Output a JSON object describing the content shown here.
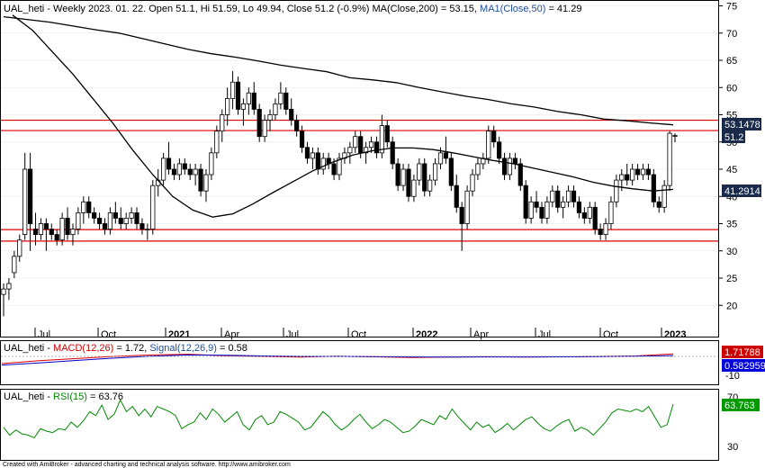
{
  "price_panel": {
    "prefix": "UAL_heti - Weekly 2023. 01. 22. Open 51.1, Hi 51.59, Lo 49.94, Close 51.2 (-0.9%) MA(Close,200) = 53.15, ",
    "ma50_label": "MA1(Close,50)",
    "ma50_value_text": " = 41.29",
    "tag_ma200": "53.1478",
    "tag_close": "51.2",
    "tag_ma50": "41.2914"
  },
  "macd_panel": {
    "prefix": "UAL_heti - ",
    "macd_label": "MACD(12,26)",
    "macd_value_text": " = 1.72, ",
    "signal_label": "Signal(12,26,9)",
    "signal_value_text": " = 0.58",
    "tag_macd": "1.71788",
    "tag_signal": "0.582959",
    "axis_label": "-10"
  },
  "rsi_panel": {
    "prefix": "UAL_heti - ",
    "rsi_label": "RSI(15)",
    "rsi_value_text": " = 63.76",
    "tag_rsi": "63.763",
    "axis_labels": [
      "70",
      "30"
    ]
  },
  "credit": "Created with AmiBroker - advanced charting and technical analysis software. http://www.amibroker.com",
  "colors": {
    "up_candle": "#ffffff",
    "down_candle": "#000000",
    "ma200": "#000000",
    "ma50": "#000000",
    "hline": "#e00000",
    "macd": "#e00000",
    "signal": "#0000cc",
    "rsi": "#008800",
    "tag_ma": "#1a2a4a",
    "tag_macd": "#cc0000",
    "tag_signal": "#0000dd",
    "tag_rsi": "#009900"
  },
  "chart_data": {
    "type": "candlestick",
    "y_ticks": [
      75,
      70,
      65,
      60,
      55,
      50,
      45,
      40,
      35,
      30,
      25,
      20
    ],
    "ylim": [
      16.5,
      76.5
    ],
    "x_labels": [
      "Jul",
      "Oct",
      "2021",
      "Apr",
      "Jul",
      "Oct",
      "2022",
      "Apr",
      "Jul",
      "Oct",
      "2023"
    ],
    "horizontal_lines": [
      54.0,
      52.1,
      33.9,
      31.8
    ],
    "candles": [
      {
        "o": 22,
        "h": 24,
        "l": 18,
        "c": 23
      },
      {
        "o": 23,
        "h": 25,
        "l": 21,
        "c": 24
      },
      {
        "o": 26,
        "h": 30,
        "l": 25,
        "c": 29
      },
      {
        "o": 29,
        "h": 33,
        "l": 28,
        "c": 32
      },
      {
        "o": 33,
        "h": 48,
        "l": 32,
        "c": 45
      },
      {
        "o": 45,
        "h": 48,
        "l": 30,
        "c": 35
      },
      {
        "o": 34,
        "h": 37,
        "l": 31,
        "c": 33
      },
      {
        "o": 33,
        "h": 36,
        "l": 32,
        "c": 35
      },
      {
        "o": 35,
        "h": 36,
        "l": 30,
        "c": 34
      },
      {
        "o": 34,
        "h": 35,
        "l": 32,
        "c": 33
      },
      {
        "o": 33,
        "h": 34,
        "l": 31,
        "c": 32
      },
      {
        "o": 32,
        "h": 37,
        "l": 31,
        "c": 36
      },
      {
        "o": 36,
        "h": 38,
        "l": 32,
        "c": 33
      },
      {
        "o": 33,
        "h": 35,
        "l": 31,
        "c": 34
      },
      {
        "o": 34,
        "h": 38,
        "l": 33,
        "c": 37
      },
      {
        "o": 37,
        "h": 40,
        "l": 35,
        "c": 39
      },
      {
        "o": 39,
        "h": 40,
        "l": 36,
        "c": 37
      },
      {
        "o": 37,
        "h": 38,
        "l": 35,
        "c": 36
      },
      {
        "o": 36,
        "h": 37,
        "l": 34,
        "c": 35
      },
      {
        "o": 35,
        "h": 36,
        "l": 33,
        "c": 34
      },
      {
        "o": 34,
        "h": 38,
        "l": 33,
        "c": 37
      },
      {
        "o": 37,
        "h": 39,
        "l": 35,
        "c": 36
      },
      {
        "o": 36,
        "h": 38,
        "l": 34,
        "c": 35
      },
      {
        "o": 35,
        "h": 37,
        "l": 34,
        "c": 36
      },
      {
        "o": 36,
        "h": 38,
        "l": 35,
        "c": 37
      },
      {
        "o": 37,
        "h": 38,
        "l": 34,
        "c": 35
      },
      {
        "o": 35,
        "h": 36,
        "l": 33,
        "c": 34
      },
      {
        "o": 34,
        "h": 35,
        "l": 32,
        "c": 34
      },
      {
        "o": 34,
        "h": 43,
        "l": 33,
        "c": 42
      },
      {
        "o": 42,
        "h": 45,
        "l": 40,
        "c": 43
      },
      {
        "o": 43,
        "h": 48,
        "l": 42,
        "c": 47
      },
      {
        "o": 47,
        "h": 50,
        "l": 44,
        "c": 45
      },
      {
        "o": 45,
        "h": 46,
        "l": 43,
        "c": 44
      },
      {
        "o": 44,
        "h": 47,
        "l": 43,
        "c": 46
      },
      {
        "o": 46,
        "h": 47,
        "l": 44,
        "c": 45
      },
      {
        "o": 45,
        "h": 46,
        "l": 43,
        "c": 44
      },
      {
        "o": 44,
        "h": 46,
        "l": 42,
        "c": 45
      },
      {
        "o": 45,
        "h": 46,
        "l": 40,
        "c": 41
      },
      {
        "o": 41,
        "h": 45,
        "l": 39,
        "c": 44
      },
      {
        "o": 44,
        "h": 49,
        "l": 43,
        "c": 48
      },
      {
        "o": 48,
        "h": 53,
        "l": 47,
        "c": 52
      },
      {
        "o": 52,
        "h": 56,
        "l": 50,
        "c": 55
      },
      {
        "o": 55,
        "h": 60,
        "l": 53,
        "c": 58
      },
      {
        "o": 58,
        "h": 63,
        "l": 56,
        "c": 61
      },
      {
        "o": 61,
        "h": 62,
        "l": 55,
        "c": 56
      },
      {
        "o": 56,
        "h": 58,
        "l": 53,
        "c": 57
      },
      {
        "o": 57,
        "h": 60,
        "l": 55,
        "c": 59
      },
      {
        "o": 59,
        "h": 61,
        "l": 55,
        "c": 56
      },
      {
        "o": 56,
        "h": 57,
        "l": 50,
        "c": 51
      },
      {
        "o": 51,
        "h": 55,
        "l": 50,
        "c": 54
      },
      {
        "o": 54,
        "h": 56,
        "l": 52,
        "c": 55
      },
      {
        "o": 55,
        "h": 58,
        "l": 54,
        "c": 57
      },
      {
        "o": 57,
        "h": 61,
        "l": 56,
        "c": 59
      },
      {
        "o": 59,
        "h": 60,
        "l": 55,
        "c": 56
      },
      {
        "o": 56,
        "h": 58,
        "l": 53,
        "c": 54
      },
      {
        "o": 54,
        "h": 55,
        "l": 51,
        "c": 52
      },
      {
        "o": 52,
        "h": 53,
        "l": 48,
        "c": 49
      },
      {
        "o": 49,
        "h": 50,
        "l": 46,
        "c": 47
      },
      {
        "o": 47,
        "h": 49,
        "l": 45,
        "c": 48
      },
      {
        "o": 48,
        "h": 49,
        "l": 44,
        "c": 45
      },
      {
        "o": 45,
        "h": 48,
        "l": 44,
        "c": 47
      },
      {
        "o": 47,
        "h": 48,
        "l": 45,
        "c": 46
      },
      {
        "o": 46,
        "h": 47,
        "l": 43,
        "c": 44
      },
      {
        "o": 44,
        "h": 48,
        "l": 43,
        "c": 47
      },
      {
        "o": 47,
        "h": 49,
        "l": 46,
        "c": 48
      },
      {
        "o": 48,
        "h": 50,
        "l": 46,
        "c": 49
      },
      {
        "o": 49,
        "h": 52,
        "l": 48,
        "c": 51
      },
      {
        "o": 51,
        "h": 52,
        "l": 47,
        "c": 48
      },
      {
        "o": 48,
        "h": 50,
        "l": 46,
        "c": 49
      },
      {
        "o": 49,
        "h": 51,
        "l": 48,
        "c": 50
      },
      {
        "o": 50,
        "h": 51,
        "l": 47,
        "c": 48
      },
      {
        "o": 48,
        "h": 55,
        "l": 47,
        "c": 53
      },
      {
        "o": 53,
        "h": 54,
        "l": 49,
        "c": 50
      },
      {
        "o": 50,
        "h": 51,
        "l": 45,
        "c": 46
      },
      {
        "o": 46,
        "h": 47,
        "l": 41,
        "c": 42
      },
      {
        "o": 42,
        "h": 46,
        "l": 41,
        "c": 45
      },
      {
        "o": 45,
        "h": 46,
        "l": 39,
        "c": 40
      },
      {
        "o": 40,
        "h": 44,
        "l": 39,
        "c": 43
      },
      {
        "o": 43,
        "h": 47,
        "l": 42,
        "c": 46
      },
      {
        "o": 46,
        "h": 47,
        "l": 40,
        "c": 41
      },
      {
        "o": 41,
        "h": 44,
        "l": 40,
        "c": 43
      },
      {
        "o": 43,
        "h": 47,
        "l": 42,
        "c": 46
      },
      {
        "o": 46,
        "h": 49,
        "l": 45,
        "c": 48
      },
      {
        "o": 48,
        "h": 51,
        "l": 46,
        "c": 47
      },
      {
        "o": 47,
        "h": 48,
        "l": 41,
        "c": 42
      },
      {
        "o": 42,
        "h": 44,
        "l": 37,
        "c": 38
      },
      {
        "o": 38,
        "h": 39,
        "l": 30,
        "c": 35
      },
      {
        "o": 35,
        "h": 42,
        "l": 34,
        "c": 41
      },
      {
        "o": 41,
        "h": 45,
        "l": 40,
        "c": 44
      },
      {
        "o": 44,
        "h": 47,
        "l": 43,
        "c": 46
      },
      {
        "o": 46,
        "h": 48,
        "l": 45,
        "c": 47
      },
      {
        "o": 47,
        "h": 53,
        "l": 46,
        "c": 52
      },
      {
        "o": 52,
        "h": 53,
        "l": 49,
        "c": 50
      },
      {
        "o": 50,
        "h": 51,
        "l": 46,
        "c": 47
      },
      {
        "o": 47,
        "h": 48,
        "l": 43,
        "c": 44
      },
      {
        "o": 44,
        "h": 48,
        "l": 43,
        "c": 47
      },
      {
        "o": 47,
        "h": 48,
        "l": 45,
        "c": 46
      },
      {
        "o": 46,
        "h": 47,
        "l": 41,
        "c": 42
      },
      {
        "o": 42,
        "h": 43,
        "l": 35,
        "c": 36
      },
      {
        "o": 36,
        "h": 40,
        "l": 35,
        "c": 39
      },
      {
        "o": 39,
        "h": 41,
        "l": 37,
        "c": 38
      },
      {
        "o": 38,
        "h": 39,
        "l": 35,
        "c": 36
      },
      {
        "o": 36,
        "h": 40,
        "l": 35,
        "c": 39
      },
      {
        "o": 39,
        "h": 42,
        "l": 38,
        "c": 41
      },
      {
        "o": 41,
        "h": 42,
        "l": 37,
        "c": 38
      },
      {
        "o": 38,
        "h": 40,
        "l": 36,
        "c": 39
      },
      {
        "o": 39,
        "h": 42,
        "l": 38,
        "c": 41
      },
      {
        "o": 41,
        "h": 42,
        "l": 38,
        "c": 39
      },
      {
        "o": 39,
        "h": 40,
        "l": 36,
        "c": 37
      },
      {
        "o": 37,
        "h": 38,
        "l": 35,
        "c": 36
      },
      {
        "o": 36,
        "h": 39,
        "l": 35,
        "c": 38
      },
      {
        "o": 38,
        "h": 39,
        "l": 33,
        "c": 34
      },
      {
        "o": 34,
        "h": 35,
        "l": 32,
        "c": 33
      },
      {
        "o": 33,
        "h": 36,
        "l": 32,
        "c": 35
      },
      {
        "o": 35,
        "h": 40,
        "l": 34,
        "c": 39
      },
      {
        "o": 39,
        "h": 44,
        "l": 38,
        "c": 43
      },
      {
        "o": 43,
        "h": 45,
        "l": 41,
        "c": 44
      },
      {
        "o": 44,
        "h": 46,
        "l": 42,
        "c": 43
      },
      {
        "o": 43,
        "h": 46,
        "l": 42,
        "c": 45
      },
      {
        "o": 45,
        "h": 46,
        "l": 43,
        "c": 44
      },
      {
        "o": 44,
        "h": 46,
        "l": 43,
        "c": 45
      },
      {
        "o": 45,
        "h": 46,
        "l": 43,
        "c": 44
      },
      {
        "o": 44,
        "h": 45,
        "l": 38,
        "c": 39
      },
      {
        "o": 39,
        "h": 40,
        "l": 37,
        "c": 38
      },
      {
        "o": 38,
        "h": 43,
        "l": 37,
        "c": 42
      },
      {
        "o": 42,
        "h": 52,
        "l": 41,
        "c": 51.6
      },
      {
        "o": 51.1,
        "h": 51.59,
        "l": 49.94,
        "c": 51.2
      }
    ],
    "ma200": [
      73.0,
      72.5,
      72.0,
      71.3,
      70.6,
      70.0,
      69.0,
      68.0,
      67.0,
      66.2,
      65.6,
      64.9,
      64.1,
      63.5,
      62.9,
      61.8,
      61.4,
      60.9,
      60.0,
      59.2,
      58.4,
      57.8,
      57.0,
      56.4,
      55.6,
      55.0,
      54.2,
      53.9,
      53.5,
      53.15
    ],
    "ma50": [
      73.3,
      70.5,
      66.5,
      62.5,
      58.0,
      53.5,
      48.5,
      44.0,
      40.0,
      37.5,
      36.2,
      36.8,
      38.6,
      40.7,
      42.7,
      44.7,
      46.3,
      47.6,
      48.4,
      48.9,
      48.9,
      48.6,
      48.0,
      47.3,
      46.6,
      46.0,
      45.2,
      44.4,
      43.6,
      42.6,
      41.9,
      41.4,
      41.0,
      41.29
    ],
    "macd_line": [
      -5.0,
      -3.0,
      -1.5,
      0.0,
      1.0,
      1.5,
      0.5,
      0.0,
      -0.5,
      0.2,
      -0.3,
      -0.8,
      -0.5,
      -0.2,
      -0.5,
      -0.3,
      0.0,
      0.3,
      1.72
    ],
    "signal_line": [
      -6.0,
      -4.5,
      -2.8,
      -1.2,
      0.2,
      1.0,
      0.8,
      0.3,
      0.0,
      0.0,
      -0.1,
      -0.4,
      -0.5,
      -0.4,
      -0.4,
      -0.3,
      -0.2,
      0.1,
      0.58
    ],
    "rsi": [
      46,
      40,
      44,
      41,
      40,
      38,
      45,
      43,
      42,
      45,
      44,
      50,
      46,
      51,
      58,
      55,
      63,
      52,
      56,
      67,
      58,
      62,
      55,
      60,
      54,
      62,
      60,
      58,
      55,
      45,
      48,
      50,
      57,
      52,
      60,
      56,
      50,
      54,
      58,
      48,
      44,
      52,
      55,
      48,
      50,
      58,
      56,
      53,
      50,
      44,
      46,
      52,
      58,
      54,
      48,
      44,
      47,
      52,
      56,
      50,
      45,
      48,
      52,
      50,
      46,
      42,
      43,
      47,
      52,
      50,
      48,
      55,
      52,
      60,
      54,
      49,
      44,
      50,
      46,
      48,
      42,
      45,
      49,
      44,
      48,
      52,
      54,
      49,
      45,
      43,
      47,
      50,
      52,
      43,
      46,
      44,
      40,
      45,
      50,
      57,
      60,
      59,
      58,
      60,
      58,
      62,
      54,
      46,
      48,
      63.76
    ]
  }
}
